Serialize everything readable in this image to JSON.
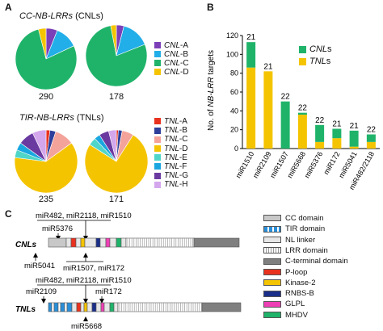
{
  "panel_a": {
    "letter": "A",
    "cnl_title_italic": "CC-NB-LRRs",
    "cnl_title_paren": "(CNLs)",
    "tnl_title_italic": "TIR-NB-LRRs",
    "tnl_title_paren": "(TNLs)",
    "cnl_counts": [
      "290",
      "178"
    ],
    "tnl_counts": [
      "235",
      "171"
    ],
    "cnl_legend": [
      {
        "prefix": "CNL",
        "suffix": "-A",
        "color": "#7b3fb8"
      },
      {
        "prefix": "CNL",
        "suffix": "-B",
        "color": "#22aee8"
      },
      {
        "prefix": "CNL",
        "suffix": "-C",
        "color": "#1fb36a"
      },
      {
        "prefix": "CNL",
        "suffix": "-D",
        "color": "#f5c400"
      }
    ],
    "tnl_legend": [
      {
        "prefix": "TNL",
        "suffix": "-A",
        "color": "#e8321e"
      },
      {
        "prefix": "TNL",
        "suffix": "-B",
        "color": "#2d3f9a"
      },
      {
        "prefix": "TNL",
        "suffix": "-C",
        "color": "#f4a39a"
      },
      {
        "prefix": "TNL",
        "suffix": "-D",
        "color": "#f5c400"
      },
      {
        "prefix": "TNL",
        "suffix": "-E",
        "color": "#4fd6c8"
      },
      {
        "prefix": "TNL",
        "suffix": "-F",
        "color": "#1aa7e0"
      },
      {
        "prefix": "TNL",
        "suffix": "-G",
        "color": "#6a3aa0"
      },
      {
        "prefix": "TNL",
        "suffix": "-H",
        "color": "#d4a6ec"
      }
    ],
    "pies": {
      "cnl1": [
        0.06,
        0.12,
        0.78,
        0.04
      ],
      "cnl2": [
        0.04,
        0.15,
        0.78,
        0.03
      ],
      "tnl1": [
        0.02,
        0.03,
        0.1,
        0.62,
        0.04,
        0.04,
        0.08,
        0.07
      ],
      "tnl2": [
        0.01,
        0.02,
        0.06,
        0.75,
        0.04,
        0.03,
        0.05,
        0.04
      ]
    }
  },
  "chart_data": {
    "type": "bar",
    "letter": "B",
    "ylabel_prefix": "No. of ",
    "ylabel_italic": "NB-LRR",
    "ylabel_suffix": " targets",
    "ylim": [
      0,
      120
    ],
    "yticks": [
      "0",
      "20",
      "40",
      "60",
      "80",
      "100",
      "120"
    ],
    "categories": [
      "miR1510",
      "miR2109",
      "miR1507",
      "miR5668",
      "miR5376",
      "miR172",
      "miR5041",
      "miR482/2118"
    ],
    "series": [
      {
        "name": "CNLs",
        "color": "#1fb36a",
        "values": [
          27,
          0,
          50,
          2,
          18,
          10,
          17,
          8
        ]
      },
      {
        "name": "TNLs",
        "color": "#f5c400",
        "values": [
          86,
          82,
          0,
          36,
          7,
          11,
          2,
          7
        ]
      }
    ],
    "bar_labels": [
      "21",
      "21",
      "22",
      "22",
      "22",
      "21",
      "21",
      "22"
    ],
    "legend": [
      {
        "label": "CNL",
        "suffix": "s",
        "color": "#1fb36a"
      },
      {
        "label": "TNL",
        "suffix": "s",
        "color": "#f5c400"
      }
    ]
  },
  "panel_c": {
    "letter": "C",
    "cnl_label": "CNLs",
    "tnl_label": "TNLs",
    "cnl_annotations": {
      "top_group": "miR482, miR2118, miR1510",
      "top_single": "miR5376",
      "bottom_left": "miR5041",
      "bottom_group": "miR1507, miR172"
    },
    "tnl_annotations": {
      "top_group": "miR482, miR2118, miR1510",
      "left": "miR2109",
      "right": "miR172",
      "bottom": "miR5668"
    },
    "legend": [
      {
        "label": "CC domain",
        "color": "#c8c8c8"
      },
      {
        "label": "TIR domain",
        "color": "#2a8fd8"
      },
      {
        "label": "NL linker",
        "color": "#e6e6e6"
      },
      {
        "label": "LRR domain",
        "color": "#ffffff"
      },
      {
        "label": "C-terminal domain",
        "color": "#7f7f7f"
      },
      {
        "label": "P-loop",
        "color": "#e8321e"
      },
      {
        "label": "Kinase-2",
        "color": "#f5c400"
      },
      {
        "label": "RNBS-B",
        "color": "#1a2f8a"
      },
      {
        "label": "GLPL",
        "color": "#ee3fb5"
      },
      {
        "label": "MHDV",
        "color": "#1fb36a"
      }
    ]
  }
}
